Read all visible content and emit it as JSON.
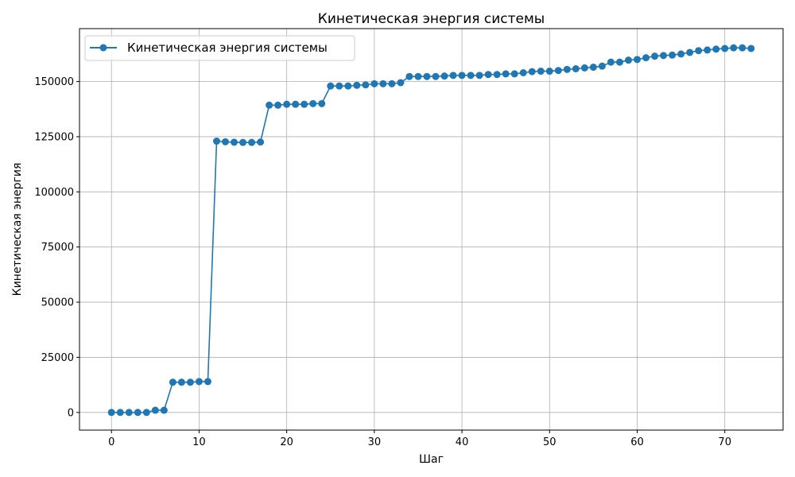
{
  "chart_data": {
    "type": "line",
    "title": "Кинетическая энергия системы",
    "xlabel": "Шаг",
    "ylabel": "Кинетическая энергия",
    "xlim": [
      -3.65,
      76.65
    ],
    "ylim": [
      -8000,
      174000
    ],
    "xticks": [
      0,
      10,
      20,
      30,
      40,
      50,
      60,
      70
    ],
    "yticks": [
      0,
      25000,
      50000,
      75000,
      100000,
      125000,
      150000
    ],
    "grid": true,
    "legend_position": "top-left",
    "series": [
      {
        "name": "Кинетическая энергия системы",
        "color": "#1f77b4",
        "marker": "circle",
        "x": [
          0,
          1,
          2,
          3,
          4,
          5,
          6,
          7,
          8,
          9,
          10,
          11,
          12,
          13,
          14,
          15,
          16,
          17,
          18,
          19,
          20,
          21,
          22,
          23,
          24,
          25,
          26,
          27,
          28,
          29,
          30,
          31,
          32,
          33,
          34,
          35,
          36,
          37,
          38,
          39,
          40,
          41,
          42,
          43,
          44,
          45,
          46,
          47,
          48,
          49,
          50,
          51,
          52,
          53,
          54,
          55,
          56,
          57,
          58,
          59,
          60,
          61,
          62,
          63,
          64,
          65,
          66,
          67,
          68,
          69,
          70,
          71,
          72,
          73
        ],
        "y": [
          0,
          0,
          0,
          0,
          0,
          1000,
          1000,
          13700,
          13700,
          13700,
          14000,
          14000,
          123000,
          122700,
          122500,
          122400,
          122400,
          122600,
          139300,
          139300,
          139700,
          139700,
          139700,
          140000,
          140000,
          148000,
          148000,
          148000,
          148300,
          148500,
          149000,
          149000,
          149000,
          149500,
          152300,
          152300,
          152300,
          152300,
          152500,
          152800,
          152800,
          152800,
          152800,
          153200,
          153200,
          153500,
          153500,
          154000,
          154500,
          154700,
          154700,
          155000,
          155500,
          155800,
          156200,
          156500,
          157000,
          158800,
          158800,
          159700,
          160000,
          160800,
          161500,
          161800,
          162000,
          162500,
          163200,
          164000,
          164300,
          164700,
          165000,
          165300,
          165300,
          165000
        ]
      }
    ]
  }
}
